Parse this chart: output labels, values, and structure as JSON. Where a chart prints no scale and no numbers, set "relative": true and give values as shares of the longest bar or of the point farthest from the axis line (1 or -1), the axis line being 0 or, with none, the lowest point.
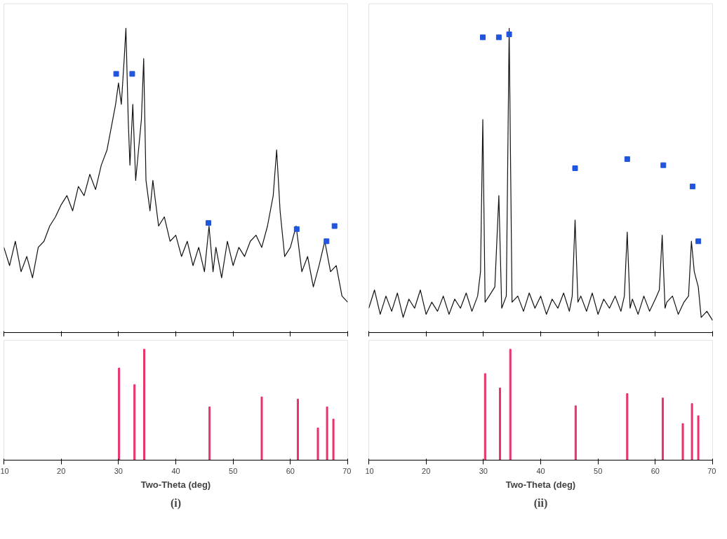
{
  "chart_data": [
    {
      "type": "line",
      "relative": true,
      "xlim": [
        10,
        70
      ],
      "xticks": [
        10,
        20,
        30,
        40,
        50,
        60,
        70
      ],
      "tick_labels": false,
      "grid": false,
      "series": [
        {
          "color": "#111111",
          "x": [
            10,
            11,
            12,
            13,
            14,
            15,
            16,
            17,
            18,
            19,
            20,
            21,
            22,
            23,
            24,
            25,
            26,
            27,
            28,
            29,
            29.5,
            30,
            30.5,
            31,
            31.3,
            31.7,
            32,
            32.5,
            33,
            33.5,
            34,
            34.4,
            34.8,
            35.5,
            36,
            37,
            38,
            39,
            40,
            41,
            42,
            43,
            44,
            45,
            45.8,
            46.5,
            47,
            48,
            49,
            50,
            51,
            52,
            53,
            54,
            55,
            56,
            57,
            57.6,
            58.2,
            59,
            60,
            61,
            62,
            63,
            64,
            65,
            66,
            67,
            68,
            69,
            70
          ],
          "values": [
            0.28,
            0.22,
            0.3,
            0.2,
            0.25,
            0.18,
            0.28,
            0.3,
            0.35,
            0.38,
            0.42,
            0.45,
            0.4,
            0.48,
            0.45,
            0.52,
            0.47,
            0.55,
            0.6,
            0.7,
            0.75,
            0.82,
            0.75,
            0.9,
            1.0,
            0.7,
            0.55,
            0.75,
            0.5,
            0.6,
            0.7,
            0.9,
            0.5,
            0.4,
            0.5,
            0.35,
            0.38,
            0.3,
            0.32,
            0.25,
            0.3,
            0.22,
            0.28,
            0.2,
            0.35,
            0.2,
            0.28,
            0.18,
            0.3,
            0.22,
            0.28,
            0.25,
            0.3,
            0.32,
            0.28,
            0.35,
            0.45,
            0.6,
            0.4,
            0.25,
            0.28,
            0.35,
            0.2,
            0.25,
            0.15,
            0.22,
            0.3,
            0.2,
            0.22,
            0.12,
            0.1
          ]
        },
        {
          "type": "scatter",
          "marker": "square",
          "color": "#2255dd",
          "x": [
            29.6,
            32.4,
            45.7,
            61.1,
            66.3,
            67.7
          ],
          "values": [
            0.85,
            0.85,
            0.36,
            0.34,
            0.3,
            0.35
          ]
        }
      ]
    },
    {
      "type": "bar",
      "relative": true,
      "xlim": [
        10,
        70
      ],
      "xticks": [
        10,
        20,
        30,
        40,
        50,
        60,
        70
      ],
      "tick_labels": "x",
      "grid": false,
      "title": "(i)",
      "xlabel": "Two-Theta (deg)",
      "series": [
        {
          "color": "#e8336a",
          "x": [
            30.1,
            32.8,
            34.5,
            45.9,
            55.0,
            61.3,
            64.8,
            66.4,
            67.5
          ],
          "values": [
            0.83,
            0.68,
            1,
            0.48,
            0.57,
            0.55,
            0.29,
            0.48,
            0.37
          ]
        }
      ]
    },
    {
      "type": "line",
      "relative": true,
      "xlim": [
        10,
        70
      ],
      "xticks": [
        10,
        20,
        30,
        40,
        50,
        60,
        70
      ],
      "tick_labels": false,
      "grid": false,
      "series": [
        {
          "color": "#111111",
          "x": [
            10,
            11,
            12,
            13,
            14,
            15,
            16,
            17,
            18,
            19,
            20,
            21,
            22,
            23,
            24,
            25,
            26,
            27,
            28,
            29,
            29.5,
            29.9,
            30.3,
            31,
            32,
            32.7,
            33.2,
            34,
            34.5,
            35,
            36,
            37,
            38,
            39,
            40,
            41,
            42,
            43,
            44,
            45,
            45.5,
            46,
            46.5,
            47,
            48,
            49,
            50,
            51,
            52,
            53,
            54,
            54.6,
            55.1,
            55.6,
            56,
            57,
            58,
            59,
            60,
            60.7,
            61.2,
            61.7,
            62,
            63,
            64,
            65,
            65.8,
            66.3,
            66.8,
            67.5,
            68,
            69,
            70
          ],
          "values": [
            0.08,
            0.14,
            0.06,
            0.12,
            0.07,
            0.13,
            0.05,
            0.11,
            0.08,
            0.14,
            0.06,
            0.1,
            0.07,
            0.12,
            0.06,
            0.11,
            0.08,
            0.13,
            0.07,
            0.12,
            0.2,
            0.7,
            0.1,
            0.12,
            0.15,
            0.45,
            0.08,
            0.12,
            1.0,
            0.1,
            0.12,
            0.07,
            0.13,
            0.08,
            0.12,
            0.06,
            0.11,
            0.08,
            0.13,
            0.07,
            0.12,
            0.37,
            0.1,
            0.12,
            0.07,
            0.13,
            0.06,
            0.11,
            0.08,
            0.12,
            0.07,
            0.12,
            0.33,
            0.08,
            0.11,
            0.06,
            0.12,
            0.07,
            0.11,
            0.14,
            0.32,
            0.08,
            0.1,
            0.12,
            0.06,
            0.1,
            0.12,
            0.3,
            0.2,
            0.15,
            0.05,
            0.07,
            0.04
          ]
        },
        {
          "type": "scatter",
          "marker": "square",
          "color": "#2255dd",
          "x": [
            29.9,
            32.7,
            34.5,
            46.0,
            55.1,
            61.4,
            66.5,
            67.5
          ],
          "values": [
            0.97,
            0.97,
            0.98,
            0.54,
            0.57,
            0.55,
            0.48,
            0.3
          ]
        }
      ]
    },
    {
      "type": "bar",
      "relative": true,
      "xlim": [
        10,
        70
      ],
      "xticks": [
        10,
        20,
        30,
        40,
        50,
        60,
        70
      ],
      "tick_labels": "x",
      "grid": false,
      "title": "(ii)",
      "xlabel": "Two-Theta (deg)",
      "series": [
        {
          "color": "#e8336a",
          "x": [
            30.3,
            32.9,
            34.7,
            46.1,
            55.1,
            61.3,
            64.8,
            66.4,
            67.5
          ],
          "values": [
            0.78,
            0.65,
            1,
            0.49,
            0.6,
            0.56,
            0.33,
            0.51,
            0.4
          ]
        }
      ]
    }
  ]
}
